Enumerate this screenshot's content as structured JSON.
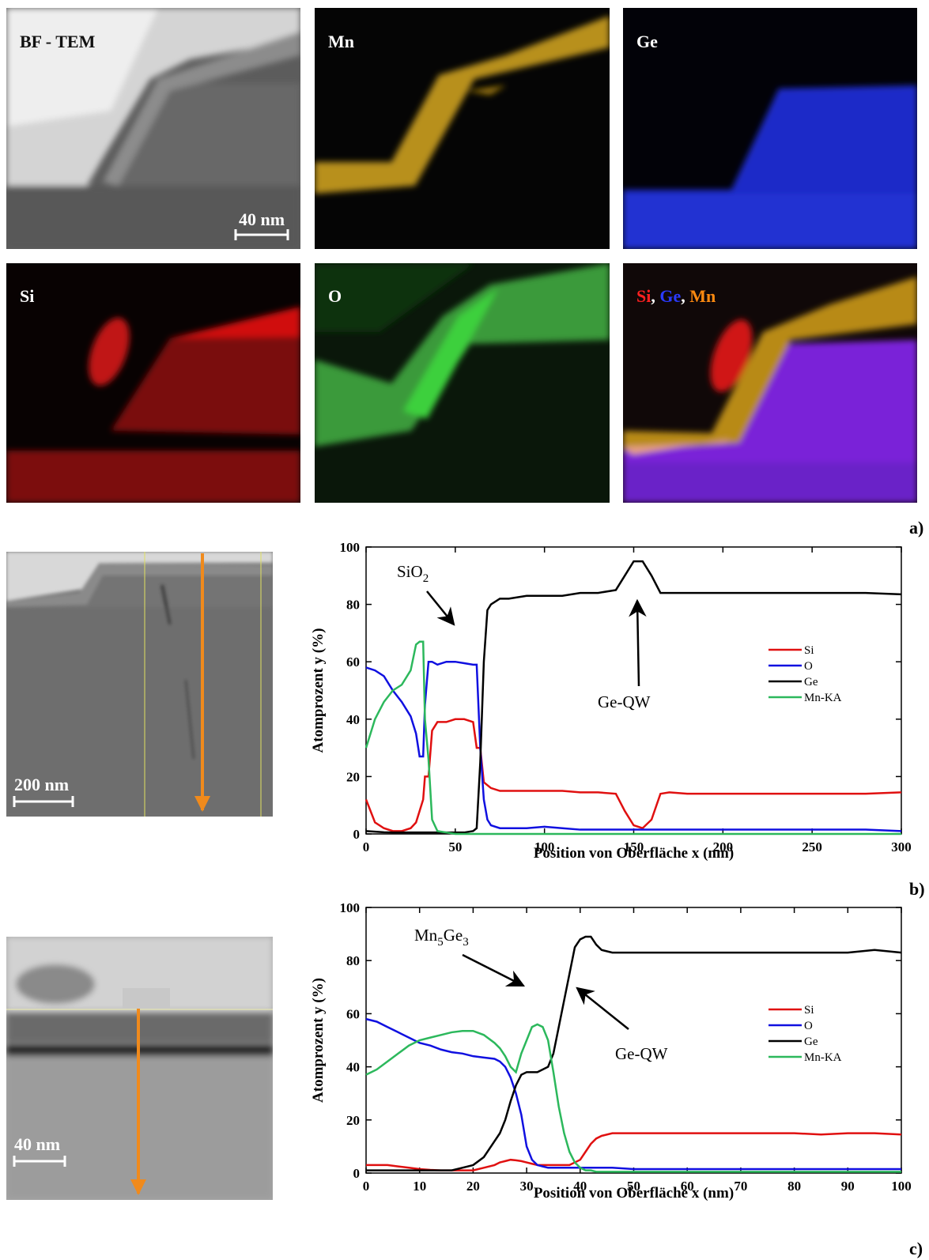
{
  "images": [
    {
      "label": "BF - TEM",
      "scale_bar": "40 nm"
    },
    {
      "label": "Mn"
    },
    {
      "label": "Ge"
    },
    {
      "label": "Si"
    },
    {
      "label": "O"
    },
    {
      "label_parts": [
        "Si",
        ",",
        "Ge",
        ",",
        "Mn"
      ]
    },
    {
      "scale_bar": "200 nm"
    },
    {
      "scale_bar": "40 nm"
    }
  ],
  "panel_labels": [
    "a)",
    "b)",
    "c)"
  ],
  "chart_data": [
    {
      "type": "line",
      "x": [
        0,
        5,
        10,
        15,
        20,
        25,
        28,
        30,
        32,
        33,
        35,
        37,
        40,
        45,
        50,
        55,
        60,
        62,
        64,
        66,
        68,
        70,
        75,
        80,
        90,
        100,
        110,
        120,
        130,
        140,
        145,
        150,
        155,
        160,
        165,
        170,
        180,
        200,
        220,
        240,
        260,
        280,
        300
      ],
      "series": [
        {
          "name": "Si",
          "color": "#e01010",
          "values": [
            12,
            4,
            2,
            1,
            1,
            2,
            4,
            8,
            12,
            20,
            20,
            36,
            39,
            39,
            40,
            40,
            39,
            30,
            30,
            18,
            17,
            16,
            15,
            15,
            15,
            15,
            15,
            14.5,
            14.5,
            14,
            8,
            3,
            2,
            5,
            14,
            14.5,
            14,
            14,
            14,
            14,
            14,
            14,
            14.5
          ]
        },
        {
          "name": "O",
          "color": "#1010e0",
          "values": [
            58,
            57,
            55,
            50,
            46,
            41,
            35,
            27,
            27,
            45,
            60,
            60,
            59,
            60,
            60,
            59.5,
            59,
            59,
            30,
            12,
            5,
            3,
            2,
            2,
            2,
            2.5,
            2,
            1.5,
            1.5,
            1.5,
            1.5,
            1.5,
            1.5,
            1.5,
            1.5,
            1.5,
            1.5,
            1.5,
            1.5,
            1.5,
            1.5,
            1.5,
            1
          ]
        },
        {
          "name": "Ge",
          "color": "#000000",
          "values": [
            1,
            0.8,
            0.6,
            0.5,
            0.5,
            0.5,
            0.5,
            0.5,
            0.5,
            0.5,
            0.5,
            0.5,
            0.5,
            0.5,
            0.5,
            0.5,
            1,
            2,
            25,
            60,
            78,
            80,
            82,
            82,
            83,
            83,
            83,
            84,
            84,
            85,
            90,
            95,
            95,
            90,
            84,
            84,
            84,
            84,
            84,
            84,
            84,
            84,
            83.5
          ]
        },
        {
          "name": "Mn-KA",
          "color": "#2cb85c",
          "values": [
            30,
            40,
            46,
            50,
            52,
            57,
            66,
            67,
            67,
            40,
            26,
            5,
            1,
            0.5,
            0,
            0,
            0,
            0,
            0,
            0,
            0,
            0,
            0,
            0,
            0,
            0,
            0,
            0,
            0,
            0,
            0,
            0,
            0,
            0,
            0,
            0,
            0,
            0,
            0,
            0,
            0,
            0,
            0
          ]
        }
      ],
      "xlim": [
        0,
        300
      ],
      "xticks": [
        0,
        50,
        100,
        150,
        200,
        250,
        300
      ],
      "ylim": [
        0,
        100
      ],
      "yticks": [
        0,
        20,
        40,
        60,
        80,
        100
      ],
      "xlabel": "Position von Oberfläche x (nm)",
      "ylabel": "Atomprozent y (%)",
      "annotations": [
        {
          "parts": [
            "SiO",
            "2"
          ]
        },
        {
          "parts": [
            "Ge-QW"
          ]
        }
      ]
    },
    {
      "type": "line",
      "x": [
        0,
        2,
        4,
        6,
        8,
        10,
        12,
        14,
        16,
        18,
        20,
        22,
        24,
        25,
        26,
        27,
        28,
        29,
        30,
        31,
        32,
        33,
        34,
        35,
        36,
        37,
        38,
        39,
        40,
        41,
        42,
        43,
        44,
        46,
        50,
        55,
        60,
        65,
        70,
        75,
        80,
        85,
        90,
        95,
        100
      ],
      "series": [
        {
          "name": "Si",
          "color": "#e01010",
          "values": [
            3,
            3,
            3,
            2.5,
            2,
            1.5,
            1.2,
            1,
            1,
            1,
            1,
            2,
            3,
            4,
            4.5,
            5,
            4.8,
            4.5,
            4,
            3.5,
            3,
            3,
            3,
            3,
            3,
            3,
            3,
            4,
            5,
            8,
            11,
            13,
            14,
            15,
            15,
            15,
            15,
            15,
            15,
            15,
            15,
            14.5,
            15,
            15,
            14.5
          ]
        },
        {
          "name": "O",
          "color": "#1010e0",
          "values": [
            58,
            57,
            55,
            53,
            51,
            49,
            48,
            46.5,
            45.5,
            45,
            44,
            43.5,
            43,
            42,
            40,
            36,
            30,
            22,
            10,
            5,
            3,
            2.5,
            2,
            2,
            2,
            2,
            2,
            2,
            2,
            2,
            2,
            2,
            2,
            2,
            1.5,
            1.5,
            1.5,
            1.5,
            1.5,
            1.5,
            1.5,
            1.5,
            1.5,
            1.5,
            1.5
          ]
        },
        {
          "name": "Ge",
          "color": "#000000",
          "values": [
            1,
            1,
            1,
            1,
            1,
            1,
            1,
            1,
            1,
            2,
            3,
            6,
            12,
            15,
            20,
            27,
            33,
            37,
            38,
            38,
            38,
            39,
            40,
            45,
            55,
            65,
            75,
            85,
            88,
            89,
            89,
            86,
            84,
            83,
            83,
            83,
            83,
            83,
            83,
            83,
            83,
            83,
            83,
            84,
            83
          ]
        },
        {
          "name": "Mn-KA",
          "color": "#2cb85c",
          "values": [
            37,
            39,
            42,
            45,
            48,
            50,
            51,
            52,
            53,
            53.5,
            53.5,
            52,
            49,
            47,
            44,
            40,
            38,
            45,
            50,
            55,
            56,
            55,
            50,
            38,
            25,
            15,
            8,
            4,
            2,
            1,
            1,
            0.5,
            0.5,
            0.5,
            0.5,
            0.5,
            0.5,
            0.5,
            0.5,
            0.5,
            0.5,
            0.5,
            0.5,
            0.5,
            0.5
          ]
        }
      ],
      "xlim": [
        0,
        100
      ],
      "xticks": [
        0,
        10,
        20,
        30,
        40,
        50,
        60,
        70,
        80,
        90,
        100
      ],
      "ylim": [
        0,
        100
      ],
      "yticks": [
        0,
        20,
        40,
        60,
        80,
        100
      ],
      "xlabel": "Position von Oberfläche x (nm)",
      "ylabel": "Atomprozent y (%)",
      "annotations": [
        {
          "parts": [
            "Mn",
            "5",
            "Ge",
            "3"
          ]
        },
        {
          "parts": [
            "Ge-QW"
          ]
        }
      ]
    }
  ]
}
